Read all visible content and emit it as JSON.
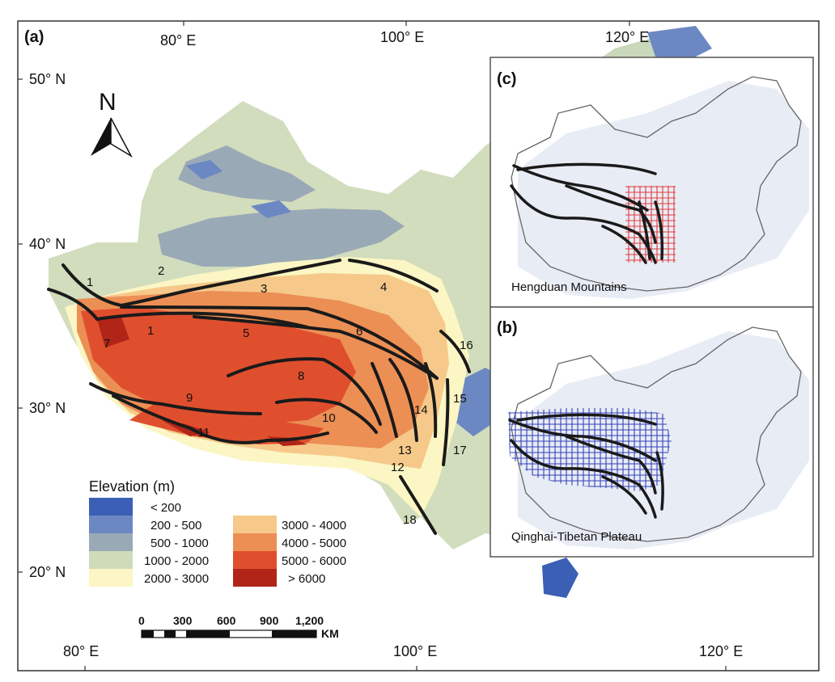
{
  "panels": {
    "a": "(a)",
    "b": "(b)",
    "c": "(c)"
  },
  "axes": {
    "top_lon": [
      "80° E",
      "100° E",
      "120° E"
    ],
    "bottom_lon": [
      "80° E",
      "100° E",
      "120° E"
    ],
    "lat": [
      "50° N",
      "40° N",
      "30° N",
      "20° N"
    ]
  },
  "north_arrow": "N",
  "numbers": [
    "1",
    "2",
    "3",
    "4",
    "1",
    "5",
    "6",
    "16",
    "7",
    "8",
    "9",
    "15",
    "14",
    "10",
    "13",
    "12",
    "17",
    "11",
    "18"
  ],
  "legend": {
    "title": "Elevation (m)",
    "items": [
      {
        "label": "< 200",
        "color": "#3b5fb5"
      },
      {
        "label": "200 - 500",
        "color": "#6c88c3"
      },
      {
        "label": "500 - 1000",
        "color": "#9aa9b6"
      },
      {
        "label": "1000 - 2000",
        "color": "#cfdbb9"
      },
      {
        "label": "2000 - 3000",
        "color": "#fbf6c4"
      },
      {
        "label": "3000 - 4000",
        "color": "#f6c98a"
      },
      {
        "label": "4000 - 5000",
        "color": "#ec8f55"
      },
      {
        "label": "5000 - 6000",
        "color": "#df4f2e"
      },
      {
        "label": "> 6000",
        "color": "#b12518"
      }
    ]
  },
  "scalebar": {
    "ticks": [
      "0",
      "300",
      "600",
      "900",
      "1,200"
    ],
    "unit": "KM"
  },
  "insets": {
    "c_title": "Hengduan Mountains",
    "b_title": "Qinghai-Tibetan Plateau"
  },
  "colors": {
    "grid_c": "#e23b3b",
    "grid_b": "#3340b8",
    "fault": "#1a1a1a",
    "sea": "#4a6db8"
  }
}
